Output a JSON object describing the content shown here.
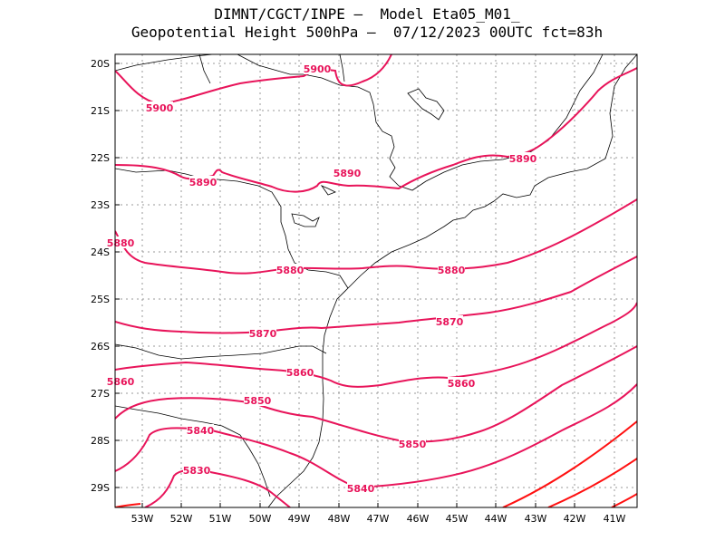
{
  "header": {
    "line1": "DIMNT/CGCT/INPE –  Model Eta05_M01_",
    "line2": "Geopotential Height 500hPa –  07/12/2023 00UTC fct=83h"
  },
  "axes": {
    "lat_labels": [
      "20S",
      "21S",
      "22S",
      "23S",
      "24S",
      "25S",
      "26S",
      "27S",
      "28S",
      "29S"
    ],
    "lon_labels": [
      "53W",
      "52W",
      "51W",
      "50W",
      "49W",
      "48W",
      "47W",
      "46W",
      "45W",
      "44W",
      "43W",
      "42W",
      "41W"
    ]
  },
  "colors": {
    "contour_magenta": "#e8145a",
    "contour_red": "#ff1010",
    "coastline": "#000000",
    "grid": "#999999"
  },
  "contour_labels": [
    {
      "text": "5900"
    },
    {
      "text": "5900"
    },
    {
      "text": "5890"
    },
    {
      "text": "5890"
    },
    {
      "text": "5890"
    },
    {
      "text": "5880"
    },
    {
      "text": "5880"
    },
    {
      "text": "5880"
    },
    {
      "text": "5870"
    },
    {
      "text": "5870"
    },
    {
      "text": "5860"
    },
    {
      "text": "5860"
    },
    {
      "text": "5860"
    },
    {
      "text": "5850"
    },
    {
      "text": "5850"
    },
    {
      "text": "5840"
    },
    {
      "text": "5840"
    },
    {
      "text": "5830"
    }
  ]
}
